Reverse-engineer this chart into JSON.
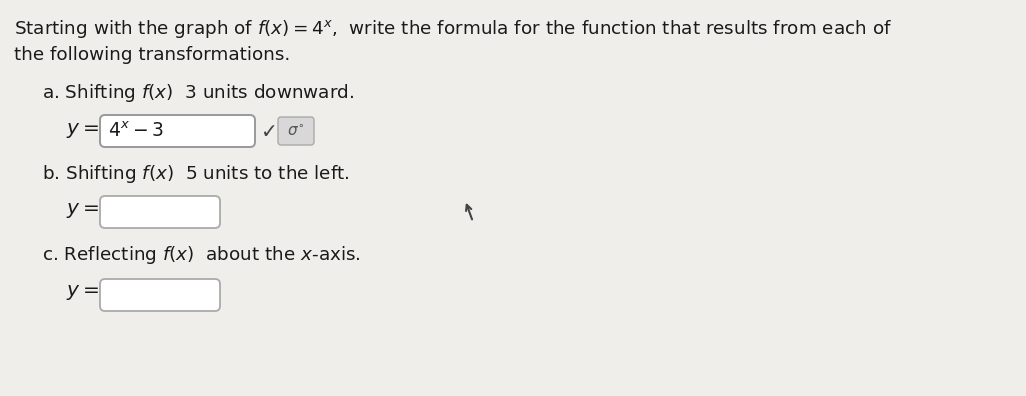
{
  "bg_color": "#f0eeeb",
  "text_color": "#1a1a1a",
  "title_line1": "Starting with the graph of $f(x) = 4^x$,  write the formula for the function that results from each of",
  "title_line2": "the following transformations.",
  "part_a_label": "a. Shifting $f(x)$  3 units downward.",
  "part_b_label": "b. Shifting $f(x)$  5 units to the left.",
  "part_c_label": "c. Reflecting $f(x)$  about the $x$-axis.",
  "box_edge_color": "#b0b0b0",
  "sigma_box_color": "#d8d8d8",
  "title_fs": 13.2,
  "label_fs": 13.2,
  "math_fs": 13.5,
  "y_label_fs": 14.5
}
